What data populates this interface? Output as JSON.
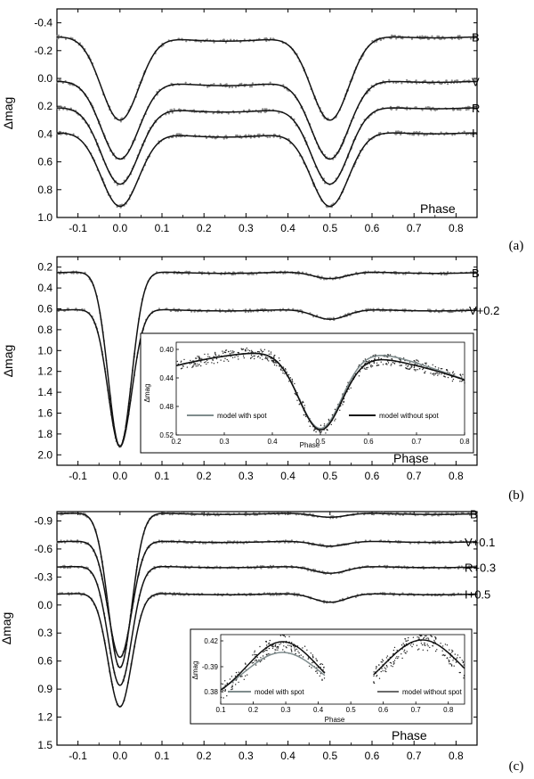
{
  "chart_data": [
    {
      "panel": "(a)",
      "type": "line",
      "xlabel": "Phase",
      "ylabel": "Δmag",
      "xlim": [
        -0.15,
        0.85
      ],
      "ylim": [
        -0.5,
        1.0
      ],
      "y_inverted": true,
      "xticks": [
        "-0.1",
        "0.0",
        "0.1",
        "0.2",
        "0.3",
        "0.4",
        "0.5",
        "0.6",
        "0.7",
        "0.8"
      ],
      "yticks": [
        "-0.4",
        "-0.2",
        "0.0",
        "0.2",
        "0.4",
        "0.6",
        "0.8",
        "1.0"
      ],
      "series": [
        {
          "name": "B",
          "maxLevel": -0.31,
          "primaryDepth": 0.61,
          "secondaryDepth": 0.61
        },
        {
          "name": "V",
          "maxLevel": 0.01,
          "primaryDepth": 0.57,
          "secondaryDepth": 0.57
        },
        {
          "name": "R",
          "maxLevel": 0.2,
          "primaryDepth": 0.56,
          "secondaryDepth": 0.56
        },
        {
          "name": "I",
          "maxLevel": 0.38,
          "primaryDepth": 0.54,
          "secondaryDepth": 0.54
        }
      ]
    },
    {
      "panel": "(b)",
      "type": "line",
      "xlabel": "Phase",
      "ylabel": "Δmag",
      "xlim": [
        -0.15,
        0.85
      ],
      "ylim": [
        0.1,
        2.1
      ],
      "y_inverted": true,
      "xticks": [
        "-0.1",
        "0.0",
        "0.1",
        "0.2",
        "0.3",
        "0.4",
        "0.5",
        "0.6",
        "0.7",
        "0.8"
      ],
      "yticks": [
        "0.2",
        "0.4",
        "0.6",
        "0.8",
        "1.0",
        "1.2",
        "1.4",
        "1.6",
        "1.8",
        "2.0"
      ],
      "series": [
        {
          "name": "B",
          "maxLevel": 0.24,
          "primaryDepth": 1.68,
          "secondaryDepth": 0.07
        },
        {
          "name": "V+0.2",
          "maxLevel": 0.6,
          "primaryDepth": 1.32,
          "secondaryDepth": 0.1
        }
      ],
      "inset": {
        "xlabel": "Phase",
        "ylabel": "Δmag",
        "xlim": [
          0.2,
          0.8
        ],
        "ylim": [
          0.39,
          0.52
        ],
        "xticks": [
          "0.2",
          "0.3",
          "0.4",
          "0.5",
          "0.6",
          "0.7",
          "0.8"
        ],
        "yticks": [
          "0.40",
          "0.44",
          "0.48",
          "0.52"
        ],
        "legend": [
          "model with spot",
          "model without spot"
        ]
      }
    },
    {
      "panel": "(c)",
      "type": "line",
      "xlabel": "Phase",
      "ylabel": "Δmag",
      "xlim": [
        -0.15,
        0.85
      ],
      "ylim": [
        -1.0,
        1.5
      ],
      "y_inverted": true,
      "xticks": [
        "-0.1",
        "0.0",
        "0.1",
        "0.2",
        "0.3",
        "0.4",
        "0.5",
        "0.6",
        "0.7",
        "0.8"
      ],
      "yticks": [
        "-0.9",
        "-0.6",
        "-0.3",
        "0.0",
        "0.3",
        "0.6",
        "0.9",
        "1.2",
        "1.5"
      ],
      "series": [
        {
          "name": "B",
          "maxLevel": -0.99,
          "primaryDepth": 1.66,
          "secondaryDepth": 0.05
        },
        {
          "name": "V+0.1",
          "maxLevel": -0.69,
          "primaryDepth": 1.25,
          "secondaryDepth": 0.06
        },
        {
          "name": "R+0.3",
          "maxLevel": -0.42,
          "primaryDepth": 1.28,
          "secondaryDepth": 0.08
        },
        {
          "name": "I+0.5",
          "maxLevel": -0.13,
          "primaryDepth": 1.22,
          "secondaryDepth": 0.1
        }
      ],
      "inset": {
        "xlabel": "Phase",
        "ylabel": "Δmag",
        "xticks": [
          "0.1",
          "0.2",
          "0.3",
          "0.4",
          "0.5",
          "0.6",
          "0.7",
          "0.8"
        ],
        "yticks": [
          "0.42",
          "-0.39",
          "0.38"
        ],
        "legend": [
          "model with spot",
          "model without spot"
        ]
      }
    }
  ],
  "colors": {
    "model": "#111111",
    "data": "#8a8a8a",
    "spot_model": "#7f8c8d"
  }
}
